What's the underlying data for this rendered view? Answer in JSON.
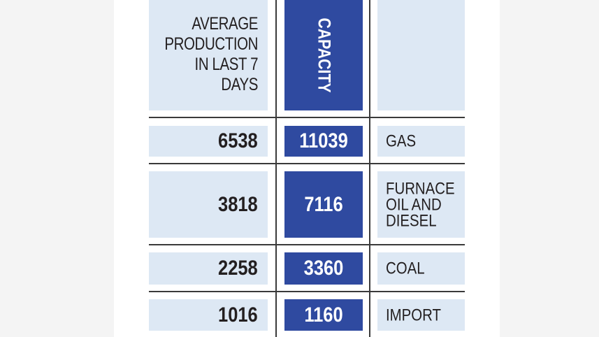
{
  "chart_data": {
    "type": "table",
    "columns": [
      "AVERAGE PRODUCTION IN LAST 7 DAYS",
      "CAPACITY",
      ""
    ],
    "header": {
      "production": "AVERAGE\nPRODUCTION\nIN LAST 7\nDAYS",
      "capacity": "CAPACITY"
    },
    "rows": [
      {
        "source": "GAS",
        "production": "6538",
        "capacity": "11039"
      },
      {
        "source": "FURNACE\nOIL AND\nDIESEL",
        "production": "3818",
        "capacity": "7116"
      },
      {
        "source": "COAL",
        "production": "2258",
        "capacity": "3360"
      },
      {
        "source": "IMPORT",
        "production": "1016",
        "capacity": "1160"
      }
    ]
  },
  "colors": {
    "light_cell": "#dde8f4",
    "dark_cell": "#2f4aa0",
    "rule": "#3a3a3a",
    "text": "#231f20"
  }
}
